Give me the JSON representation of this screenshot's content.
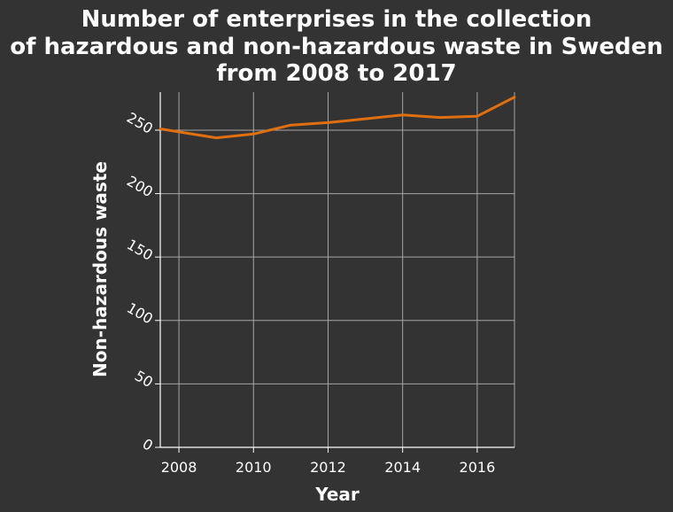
{
  "chart_data": {
    "type": "line",
    "title_lines": [
      "Number of enterprises in the collection",
      "of hazardous and non-hazardous waste in Sweden",
      "from 2008 to 2017"
    ],
    "xlabel": "Year",
    "ylabel": "Non-hazardous waste",
    "xlim": [
      2007.5,
      2017
    ],
    "ylim": [
      0,
      280
    ],
    "x_ticks": [
      2008,
      2010,
      2012,
      2014,
      2016
    ],
    "y_ticks": [
      0,
      50,
      100,
      150,
      200,
      250
    ],
    "grid": true,
    "series": [
      {
        "color": "#e0700f",
        "x": [
          2007.5,
          2009,
          2010,
          2011,
          2012,
          2013,
          2014,
          2015,
          2016,
          2017
        ],
        "values": [
          251,
          244,
          247,
          254,
          256,
          259,
          262,
          260,
          261,
          276
        ]
      }
    ],
    "colors": {
      "background": "#333333",
      "grid": "#a6a6a6",
      "axis": "#ffffff",
      "text": "#ffffff"
    }
  }
}
